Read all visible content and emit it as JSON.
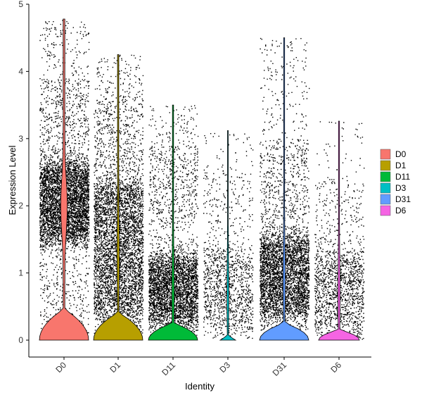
{
  "chart_data": {
    "type": "violin",
    "xlabel": "Identity",
    "ylabel": "Expression Level",
    "categories": [
      "D0",
      "D1",
      "D11",
      "D3",
      "D31",
      "D6"
    ],
    "ylim": [
      -0.25,
      5
    ],
    "yticks": [
      0,
      1,
      2,
      3,
      4,
      5
    ],
    "grid": false,
    "legend_position": "right",
    "colors": {
      "D0": "#F8766D",
      "D1": "#B79F00",
      "D11": "#00BA38",
      "D3": "#00BFC4",
      "D31": "#619CFF",
      "D6": "#F564E3"
    },
    "series": [
      {
        "name": "D0",
        "max": 4.78,
        "cells": 5200,
        "dense_range": [
          1.5,
          2.6
        ],
        "spread_max": 3.9
      },
      {
        "name": "D1",
        "max": 4.25,
        "cells": 4800,
        "dense_range": [
          0.4,
          2.3
        ],
        "spread_max": 3.6
      },
      {
        "name": "D11",
        "max": 3.5,
        "cells": 3900,
        "dense_range": [
          0.3,
          1.2
        ],
        "spread_max": 2.9
      },
      {
        "name": "D3",
        "max": 3.12,
        "cells": 1300,
        "dense_range": [
          0.2,
          1.3
        ],
        "spread_max": 2.5
      },
      {
        "name": "D31",
        "max": 4.5,
        "cells": 4200,
        "dense_range": [
          0.4,
          1.5
        ],
        "spread_max": 3.0
      },
      {
        "name": "D6",
        "max": 3.26,
        "cells": 1500,
        "dense_range": [
          0.2,
          1.3
        ],
        "spread_max": 2.4
      }
    ],
    "legend": [
      "D0",
      "D1",
      "D11",
      "D3",
      "D31",
      "D6"
    ]
  }
}
